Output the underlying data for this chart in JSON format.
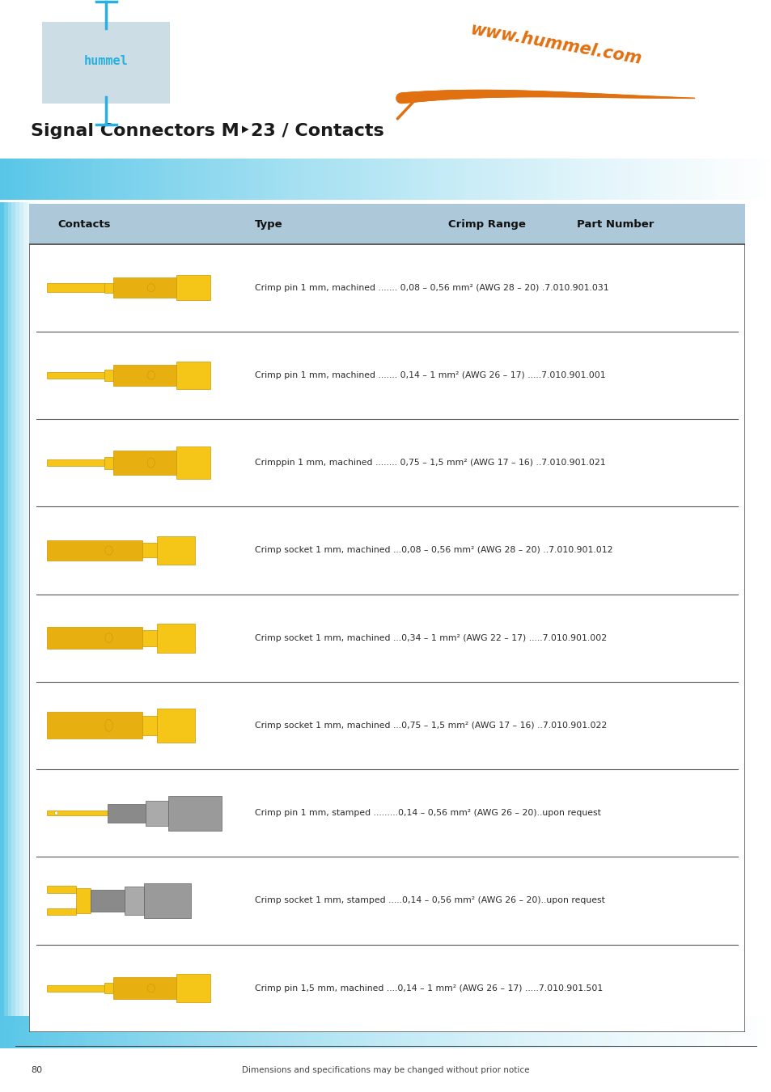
{
  "title": "Signal Connectors M‣23 / Contacts",
  "bg_color_header": "#ccdde6",
  "bg_color_page": "#ffffff",
  "table_header_bg": "#adc8d8",
  "footer_text": "Dimensions and specifications may be changed without prior notice",
  "page_number": "80",
  "website": "www.hummel.com",
  "rows": [
    {
      "description": "Crimp pin 1 mm, machined ....... 0,08 – 0,56 mm² (AWG 28 – 20) .7.010.901.031",
      "image_type": "pin_small"
    },
    {
      "description": "Crimp pin 1 mm, machined ....... 0,14 – 1 mm² (AWG 26 – 17) .....7.010.901.001",
      "image_type": "pin_medium"
    },
    {
      "description": "Crimppin 1 mm, machined ........ 0,75 – 1,5 mm² (AWG 17 – 16) ..7.010.901.021",
      "image_type": "pin_large"
    },
    {
      "description": "Crimp socket 1 mm, machined ...0,08 – 0,56 mm² (AWG 28 – 20) ..7.010.901.012",
      "image_type": "socket_small"
    },
    {
      "description": "Crimp socket 1 mm, machined ...0,34 – 1 mm² (AWG 22 – 17) .....7.010.901.002",
      "image_type": "socket_medium"
    },
    {
      "description": "Crimp socket 1 mm, machined ...0,75 – 1,5 mm² (AWG 17 – 16) ..7.010.901.022",
      "image_type": "socket_large"
    },
    {
      "description": "Crimp pin 1 mm, stamped .........0,14 – 0,56 mm² (AWG 26 – 20)..upon request",
      "image_type": "pin_stamped"
    },
    {
      "description": "Crimp socket 1 mm, stamped .....0,14 – 0,56 mm² (AWG 26 – 20)..upon request",
      "image_type": "socket_stamped"
    },
    {
      "description": "Crimp pin 1,5 mm, machined ....0,14 – 1 mm² (AWG 26 – 17) .....7.010.901.501",
      "image_type": "pin_15mm"
    }
  ],
  "col_headers": [
    "Contacts",
    "Type",
    "Crimp Range",
    "Part Number"
  ],
  "yellow": "#f5c518",
  "yellow_dark": "#c8970a",
  "yellow_mid": "#e8af10",
  "gray_connector": "#8a8a8a",
  "gray_dark": "#606060",
  "gray_light": "#aaaaaa"
}
